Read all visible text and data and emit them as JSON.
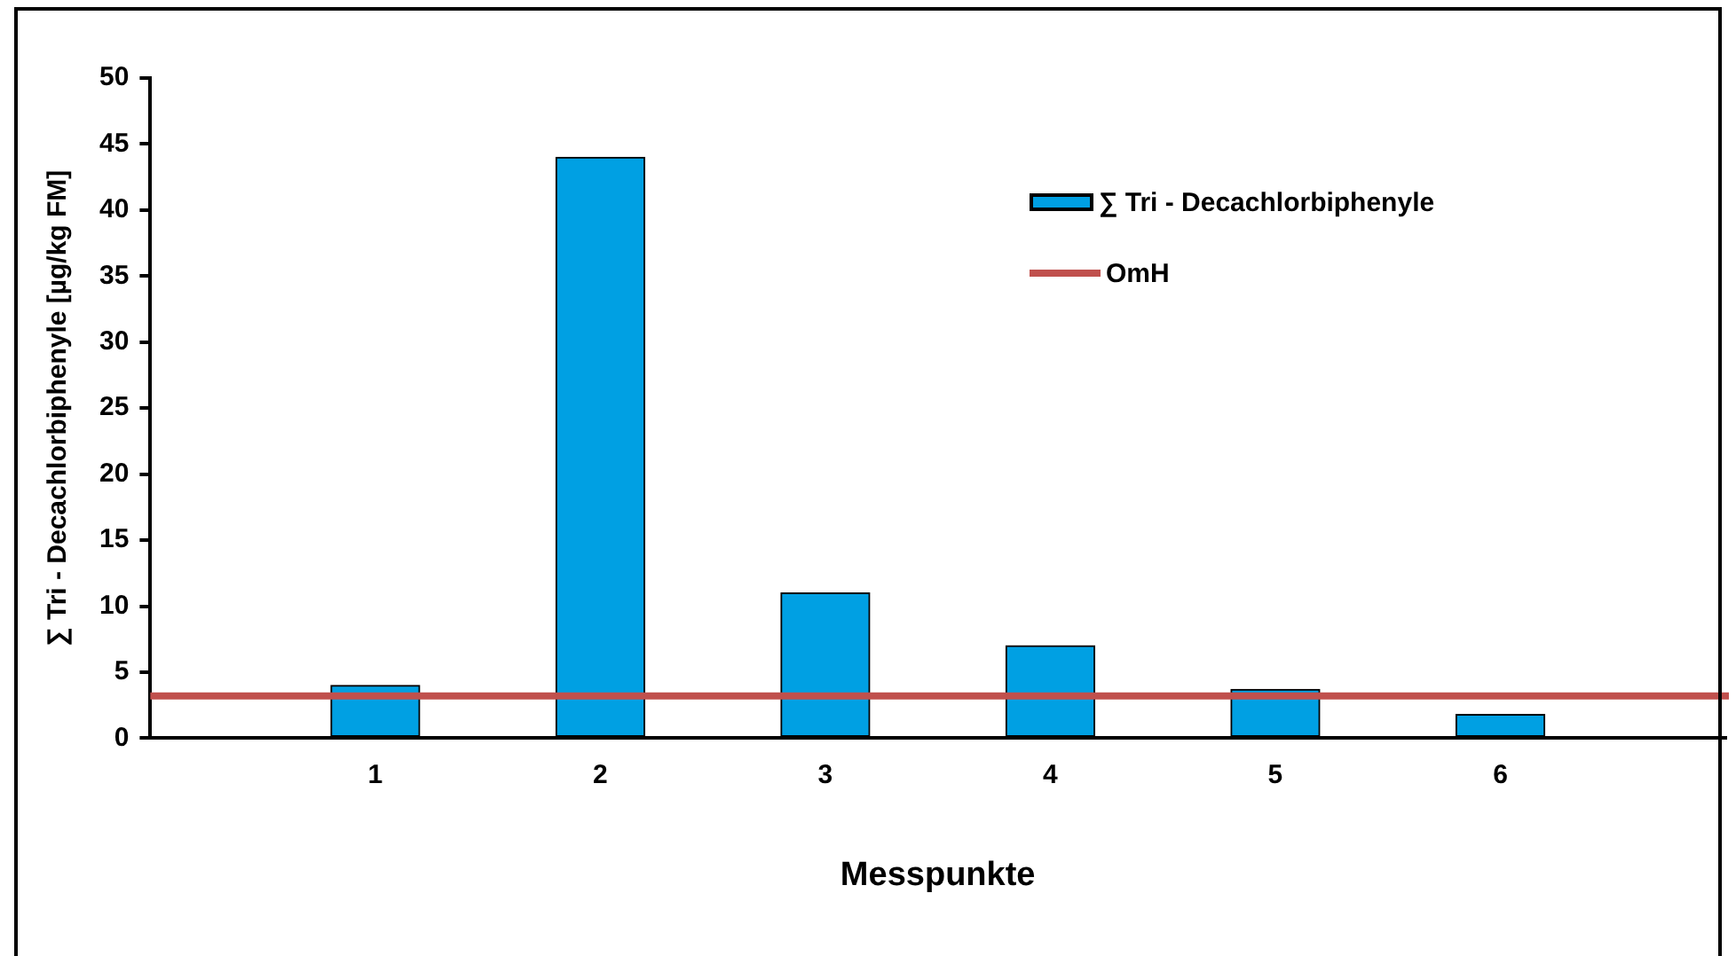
{
  "chart_data": {
    "type": "bar",
    "xlabel": "Messpunkte",
    "ylabel": "∑ Tri - Decachlorbiphenyle [µg/kg FM]",
    "x": [
      1,
      2,
      3,
      4,
      5,
      6
    ],
    "series": [
      {
        "name": "∑ Tri - Decachlorbiphenyle",
        "color": "#00a0e3",
        "values": [
          4.0,
          44,
          11,
          7.0,
          3.7,
          1.8
        ]
      }
    ],
    "xlim": [
      0,
      7
    ],
    "xticks": [
      1,
      2,
      3,
      4,
      5,
      6
    ],
    "ylim": [
      0,
      50
    ],
    "yticks": [
      0,
      5,
      10,
      15,
      20,
      25,
      30,
      35,
      40,
      45,
      50
    ],
    "ref_lines": [
      {
        "axis": "y",
        "value": 3.2,
        "label": "OmH",
        "color": "#c0504d"
      }
    ],
    "grid": false,
    "legend": "top right"
  }
}
